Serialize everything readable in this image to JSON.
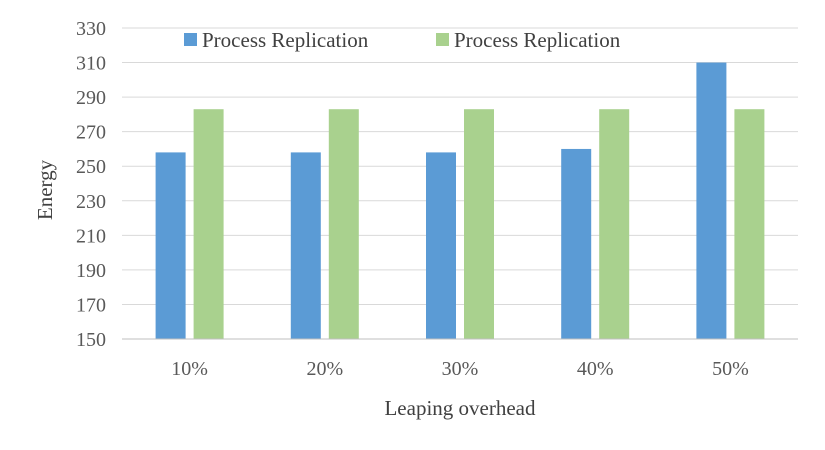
{
  "chart_data": {
    "type": "bar",
    "categories": [
      "10%",
      "20%",
      "30%",
      "40%",
      "50%"
    ],
    "series": [
      {
        "name": "Process Replication",
        "color": "#5b9bd5",
        "values": [
          258,
          258,
          258,
          260,
          310
        ]
      },
      {
        "name": "Process Replication",
        "color": "#a9d18e",
        "values": [
          283,
          283,
          283,
          283,
          283
        ]
      }
    ],
    "title": "",
    "xlabel": "Leaping overhead",
    "ylabel": "Energy",
    "ylim": [
      150,
      330
    ],
    "yticks": [
      150,
      170,
      190,
      210,
      230,
      250,
      270,
      290,
      310,
      330
    ],
    "grid": true,
    "legend_position": "top"
  }
}
